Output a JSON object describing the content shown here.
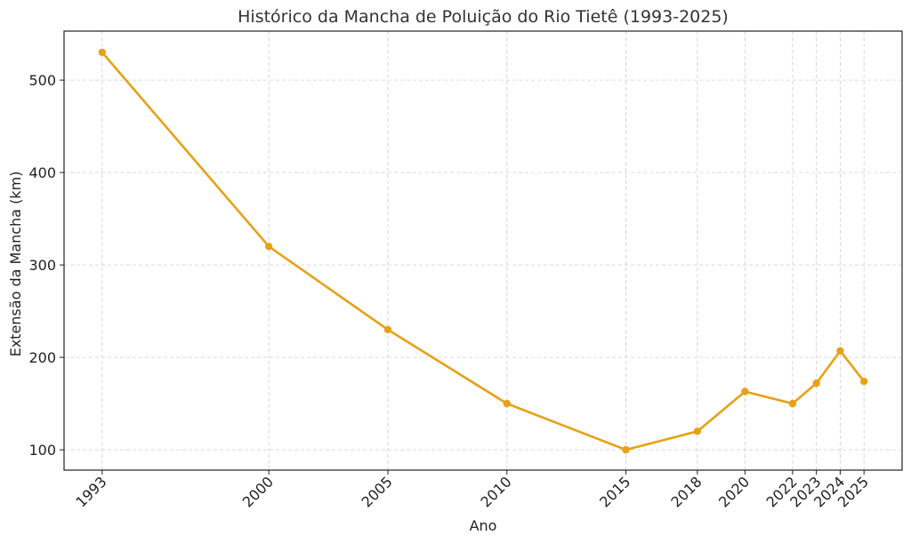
{
  "chart_data": {
    "type": "line",
    "title": "Histórico da Mancha de Poluição do Rio Tietê (1993-2025)",
    "xlabel": "Ano",
    "ylabel": "Extensão da Mancha (km)",
    "x": [
      1993,
      2000,
      2005,
      2010,
      2015,
      2018,
      2020,
      2022,
      2023,
      2024,
      2025
    ],
    "x_tick_labels": [
      "1993",
      "2000",
      "2005",
      "2010",
      "2015",
      "2018",
      "2020",
      "2022",
      "2023",
      "2024",
      "2025"
    ],
    "series": [
      {
        "values": [
          530,
          320,
          230,
          150,
          100,
          120,
          163,
          150,
          172,
          207,
          174
        ],
        "color": "#E6A117"
      }
    ],
    "yticks": [
      100,
      200,
      300,
      400,
      500
    ],
    "y_tick_labels": [
      "100",
      "200",
      "300",
      "400",
      "500"
    ],
    "xlim": [
      1991.4,
      2026.6
    ],
    "ylim": [
      78,
      553
    ],
    "grid": true
  }
}
